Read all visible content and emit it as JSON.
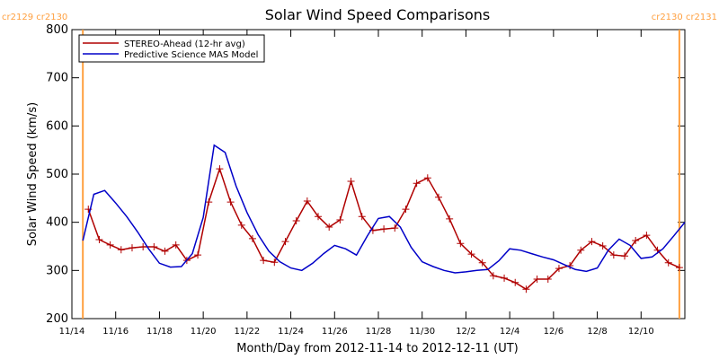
{
  "chart_data": {
    "type": "line",
    "title": "Solar Wind Speed Comparisons",
    "xlabel": "Month/Day from 2012-11-14 to 2012-12-11 (UT)",
    "ylabel": "Solar Wind Speed (km/s)",
    "xlim": [
      "2012-11-14T00:00",
      "2012-12-12T00:00"
    ],
    "xticks": [
      {
        "value": "2012-11-14T00:00",
        "label": "11/14"
      },
      {
        "value": "2012-11-16T00:00",
        "label": "11/16"
      },
      {
        "value": "2012-11-18T00:00",
        "label": "11/18"
      },
      {
        "value": "2012-11-20T00:00",
        "label": "11/20"
      },
      {
        "value": "2012-11-22T00:00",
        "label": "11/22"
      },
      {
        "value": "2012-11-24T00:00",
        "label": "11/24"
      },
      {
        "value": "2012-11-26T00:00",
        "label": "11/26"
      },
      {
        "value": "2012-11-28T00:00",
        "label": "11/28"
      },
      {
        "value": "2012-11-30T00:00",
        "label": "11/30"
      },
      {
        "value": "2012-12-02T00:00",
        "label": "12/2"
      },
      {
        "value": "2012-12-04T00:00",
        "label": "12/4"
      },
      {
        "value": "2012-12-06T00:00",
        "label": "12/6"
      },
      {
        "value": "2012-12-08T00:00",
        "label": "12/8"
      },
      {
        "value": "2012-12-10T00:00",
        "label": "12/10"
      }
    ],
    "ylim": [
      200,
      800
    ],
    "yticks": [
      200,
      300,
      400,
      500,
      600,
      700,
      800
    ],
    "grid": false,
    "legend": "upper left",
    "boundary_color": "#ffa040",
    "boundaries": [
      {
        "x": "2012-11-14T12:00",
        "label": "cr2129 cr2130"
      },
      {
        "x": "2012-12-11T18:00",
        "label": "cr2130 cr2131"
      }
    ],
    "series": [
      {
        "name": "STEREO-Ahead (12-hr avg)",
        "color": "#b00000",
        "marker": "+",
        "x": [
          "2012-11-14T18:00",
          "2012-11-15T06:00",
          "2012-11-15T18:00",
          "2012-11-16T06:00",
          "2012-11-16T18:00",
          "2012-11-17T06:00",
          "2012-11-17T18:00",
          "2012-11-18T06:00",
          "2012-11-18T18:00",
          "2012-11-19T06:00",
          "2012-11-19T18:00",
          "2012-11-20T06:00",
          "2012-11-20T18:00",
          "2012-11-21T06:00",
          "2012-11-21T18:00",
          "2012-11-22T06:00",
          "2012-11-22T18:00",
          "2012-11-23T06:00",
          "2012-11-23T18:00",
          "2012-11-24T06:00",
          "2012-11-24T18:00",
          "2012-11-25T06:00",
          "2012-11-25T18:00",
          "2012-11-26T06:00",
          "2012-11-26T18:00",
          "2012-11-27T06:00",
          "2012-11-27T18:00",
          "2012-11-28T06:00",
          "2012-11-28T18:00",
          "2012-11-29T06:00",
          "2012-11-29T18:00",
          "2012-11-30T06:00",
          "2012-11-30T18:00",
          "2012-12-01T06:00",
          "2012-12-01T18:00",
          "2012-12-02T06:00",
          "2012-12-02T18:00",
          "2012-12-03T06:00",
          "2012-12-03T18:00",
          "2012-12-04T06:00",
          "2012-12-04T18:00",
          "2012-12-05T06:00",
          "2012-12-05T18:00",
          "2012-12-06T06:00",
          "2012-12-06T18:00",
          "2012-12-07T06:00",
          "2012-12-07T18:00",
          "2012-12-08T06:00",
          "2012-12-08T18:00",
          "2012-12-09T06:00",
          "2012-12-09T18:00",
          "2012-12-10T06:00",
          "2012-12-10T18:00",
          "2012-12-11T06:00",
          "2012-12-11T18:00"
        ],
        "values": [
          427,
          364,
          353,
          343,
          347,
          349,
          349,
          340,
          353,
          321,
          332,
          442,
          511,
          442,
          394,
          366,
          321,
          317,
          360,
          403,
          444,
          412,
          390,
          405,
          485,
          412,
          383,
          386,
          388,
          427,
          481,
          492,
          452,
          407,
          356,
          334,
          316,
          289,
          284,
          275,
          261,
          282,
          282,
          304,
          310,
          342,
          360,
          351,
          332,
          330,
          362,
          373,
          342,
          316,
          306
        ]
      },
      {
        "name": "Predictive Science MAS Model",
        "color": "#0000c8",
        "x": [
          "2012-11-14T12:00",
          "2012-11-15T00:00",
          "2012-11-15T12:00",
          "2012-11-16T00:00",
          "2012-11-16T12:00",
          "2012-11-17T00:00",
          "2012-11-17T12:00",
          "2012-11-18T00:00",
          "2012-11-18T12:00",
          "2012-11-19T00:00",
          "2012-11-19T12:00",
          "2012-11-20T00:00",
          "2012-11-20T12:00",
          "2012-11-21T00:00",
          "2012-11-21T12:00",
          "2012-11-22T00:00",
          "2012-11-22T12:00",
          "2012-11-23T00:00",
          "2012-11-23T12:00",
          "2012-11-24T00:00",
          "2012-11-24T12:00",
          "2012-11-25T00:00",
          "2012-11-25T12:00",
          "2012-11-26T00:00",
          "2012-11-26T12:00",
          "2012-11-27T00:00",
          "2012-11-27T12:00",
          "2012-11-28T00:00",
          "2012-11-28T12:00",
          "2012-11-29T00:00",
          "2012-11-29T12:00",
          "2012-11-30T00:00",
          "2012-11-30T12:00",
          "2012-12-01T00:00",
          "2012-12-01T12:00",
          "2012-12-02T00:00",
          "2012-12-02T12:00",
          "2012-12-03T00:00",
          "2012-12-03T12:00",
          "2012-12-04T00:00",
          "2012-12-04T12:00",
          "2012-12-05T00:00",
          "2012-12-05T12:00",
          "2012-12-06T00:00",
          "2012-12-06T12:00",
          "2012-12-07T00:00",
          "2012-12-07T12:00",
          "2012-12-08T00:00",
          "2012-12-08T12:00",
          "2012-12-09T00:00",
          "2012-12-09T12:00",
          "2012-12-10T00:00",
          "2012-12-10T12:00",
          "2012-12-11T00:00",
          "2012-12-11T12:00",
          "2012-12-12T00:00"
        ],
        "values": [
          362,
          458,
          466,
          440,
          412,
          380,
          345,
          315,
          307,
          308,
          335,
          410,
          560,
          545,
          475,
          420,
          375,
          340,
          318,
          305,
          300,
          315,
          335,
          352,
          345,
          332,
          372,
          408,
          412,
          390,
          348,
          318,
          308,
          300,
          295,
          297,
          300,
          302,
          320,
          345,
          342,
          335,
          328,
          322,
          312,
          302,
          298,
          305,
          342,
          365,
          352,
          325,
          328,
          345,
          372,
          400
        ]
      }
    ]
  }
}
